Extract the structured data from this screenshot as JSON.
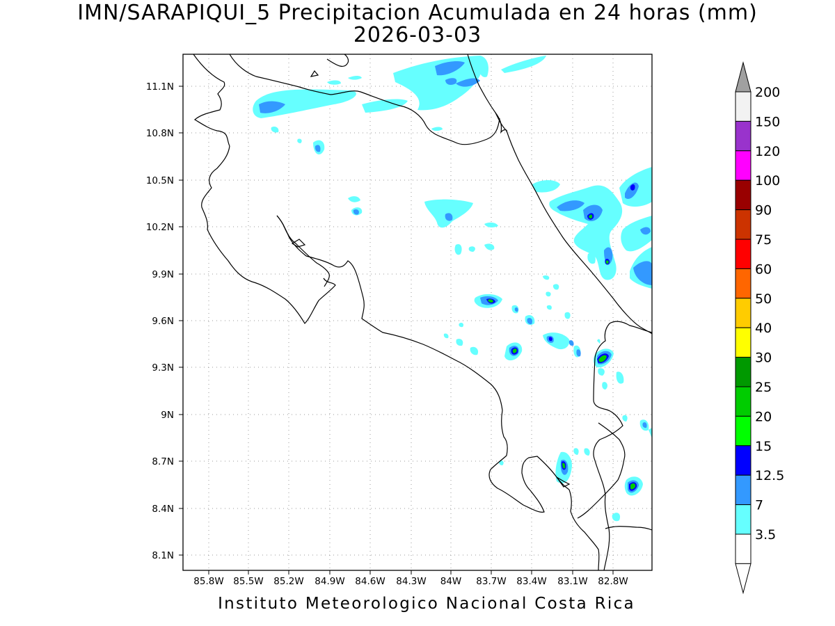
{
  "title": {
    "line1": "IMN/SARAPIQUI_5 Precipitacion Acumulada en 24 horas (mm)",
    "line2": "2026-03-03"
  },
  "credit": "Instituto Meteorologico Nacional Costa Rica",
  "map": {
    "lon_range": [
      -86.025,
      -82.65
    ],
    "lat_range": [
      8.0,
      11.3
    ],
    "lon_ticks": [
      "85.8W",
      "85.5W",
      "85.2W",
      "84.9W",
      "84.6W",
      "84.3W",
      "84W",
      "83.7W",
      "83.4W",
      "83.1W",
      "82.8W"
    ],
    "lat_ticks": [
      "11.1N",
      "10.8N",
      "10.5N",
      "10.2N",
      "9.9N",
      "9.6N",
      "9.3N",
      "9N",
      "8.7N",
      "8.4N",
      "8.1N"
    ],
    "grid": "dotted"
  },
  "legend": {
    "orientation": "vertical",
    "items": [
      {
        "label": "200",
        "color": "#f2f2f2"
      },
      {
        "label": "150",
        "color": "#9933cc"
      },
      {
        "label": "120",
        "color": "#ff00ff"
      },
      {
        "label": "100",
        "color": "#990000"
      },
      {
        "label": "90",
        "color": "#cc3300"
      },
      {
        "label": "75",
        "color": "#ff0000"
      },
      {
        "label": "60",
        "color": "#ff6600"
      },
      {
        "label": "50",
        "color": "#ffcc00"
      },
      {
        "label": "40",
        "color": "#ffff00"
      },
      {
        "label": "30",
        "color": "#009900"
      },
      {
        "label": "25",
        "color": "#00cc00"
      },
      {
        "label": "20",
        "color": "#00ff00"
      },
      {
        "label": "15",
        "color": "#0000ff"
      },
      {
        "label": "12.5",
        "color": "#3399ff"
      },
      {
        "label": "7",
        "color": "#66ffff"
      },
      {
        "label": "3.5",
        "color": "#ffffff"
      }
    ],
    "over_color": "#a0a0a0"
  }
}
